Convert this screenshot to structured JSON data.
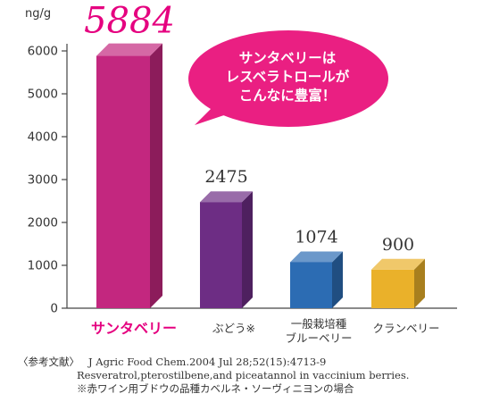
{
  "chart_data": {
    "type": "bar",
    "unit": "ng/g",
    "categories": [
      "サンタベリー",
      "ぶどう※",
      "一般栽培種\nブルーベリー",
      "クランベリー"
    ],
    "values": [
      5884,
      2475,
      1074,
      900
    ],
    "value_labels": [
      "5884",
      "2475",
      "1074",
      "900"
    ],
    "ylim": [
      0,
      6000
    ],
    "yticks": [
      "0",
      "1000",
      "2000",
      "3000",
      "4000",
      "5000",
      "6000"
    ],
    "grid": false,
    "colors": [
      "#c3277f",
      "#6d2d84",
      "#2c6cb3",
      "#eab12a"
    ],
    "highlight_color": "#e5007f",
    "callout": {
      "lines": [
        "サンタベリーは",
        "レスベラトロールが",
        "こんなに豊富！"
      ],
      "color": "#ea1f82",
      "text_color": "#ffffff"
    }
  },
  "reference": {
    "label": "〈参考文献〉",
    "line1": "J Agric Food Chem.2004 Jul 28;52(15):4713-9",
    "line2": "Resveratrol,pterostilbene,and piceatannol in vaccinium berries.",
    "line3": "※赤ワイン用ブドウの品種カベルネ・ソーヴィニヨンの場合"
  }
}
